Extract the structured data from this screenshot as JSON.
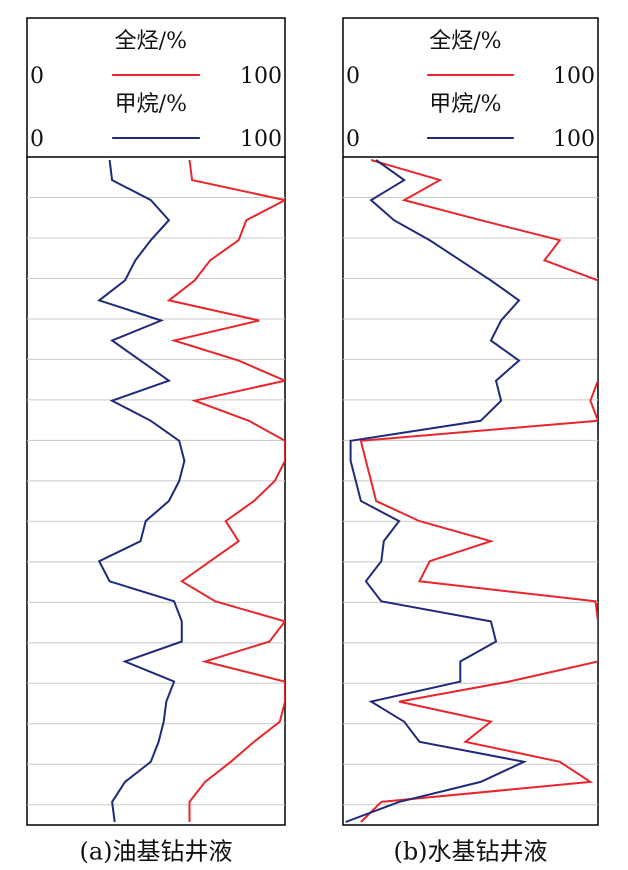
{
  "chart_data": [
    {
      "type": "line",
      "title": "(a)油基钻井液",
      "xlim": [
        0,
        100
      ],
      "xticks": [
        0,
        100
      ],
      "grid": true,
      "series": [
        {
          "name": "全烃/%",
          "color": "#e8262b",
          "values": [
            63,
            64,
            100,
            85,
            82,
            71,
            65,
            55,
            90,
            57,
            82,
            100,
            65,
            86,
            100,
            100,
            96,
            88,
            77,
            82,
            71,
            60,
            73,
            100,
            94,
            69,
            100,
            100,
            98,
            88,
            79,
            69,
            63,
            63
          ]
        },
        {
          "name": "甲烷/%",
          "color": "#1f2a7a",
          "values": [
            32,
            33,
            48,
            55,
            48,
            42,
            38,
            28,
            52,
            33,
            44,
            55,
            33,
            48,
            59,
            61,
            59,
            55,
            46,
            44,
            28,
            32,
            57,
            60,
            60,
            38,
            57,
            54,
            53,
            51,
            48,
            38,
            33,
            34
          ]
        }
      ]
    },
    {
      "type": "line",
      "title": "(b)水基钻井液",
      "xlim": [
        0,
        100
      ],
      "xticks": [
        0,
        100
      ],
      "grid": true,
      "series": [
        {
          "name": "全烃/%",
          "color": "#e8262b",
          "values": [
            11,
            38,
            24,
            54,
            85,
            79,
            100,
            100,
            100,
            100,
            100,
            100,
            97,
            100,
            7,
            9,
            11,
            13,
            30,
            58,
            34,
            30,
            99,
            100,
            100,
            100,
            65,
            22,
            58,
            48,
            85,
            97,
            15,
            7
          ]
        },
        {
          "name": "甲烷/%",
          "color": "#1f2a7a",
          "values": [
            13,
            24,
            11,
            20,
            34,
            46,
            58,
            69,
            62,
            58,
            69,
            60,
            62,
            54,
            3,
            3,
            5,
            7,
            22,
            16,
            15,
            9,
            15,
            58,
            60,
            46,
            46,
            11,
            24,
            30,
            71,
            54,
            22,
            1
          ]
        }
      ]
    }
  ]
}
